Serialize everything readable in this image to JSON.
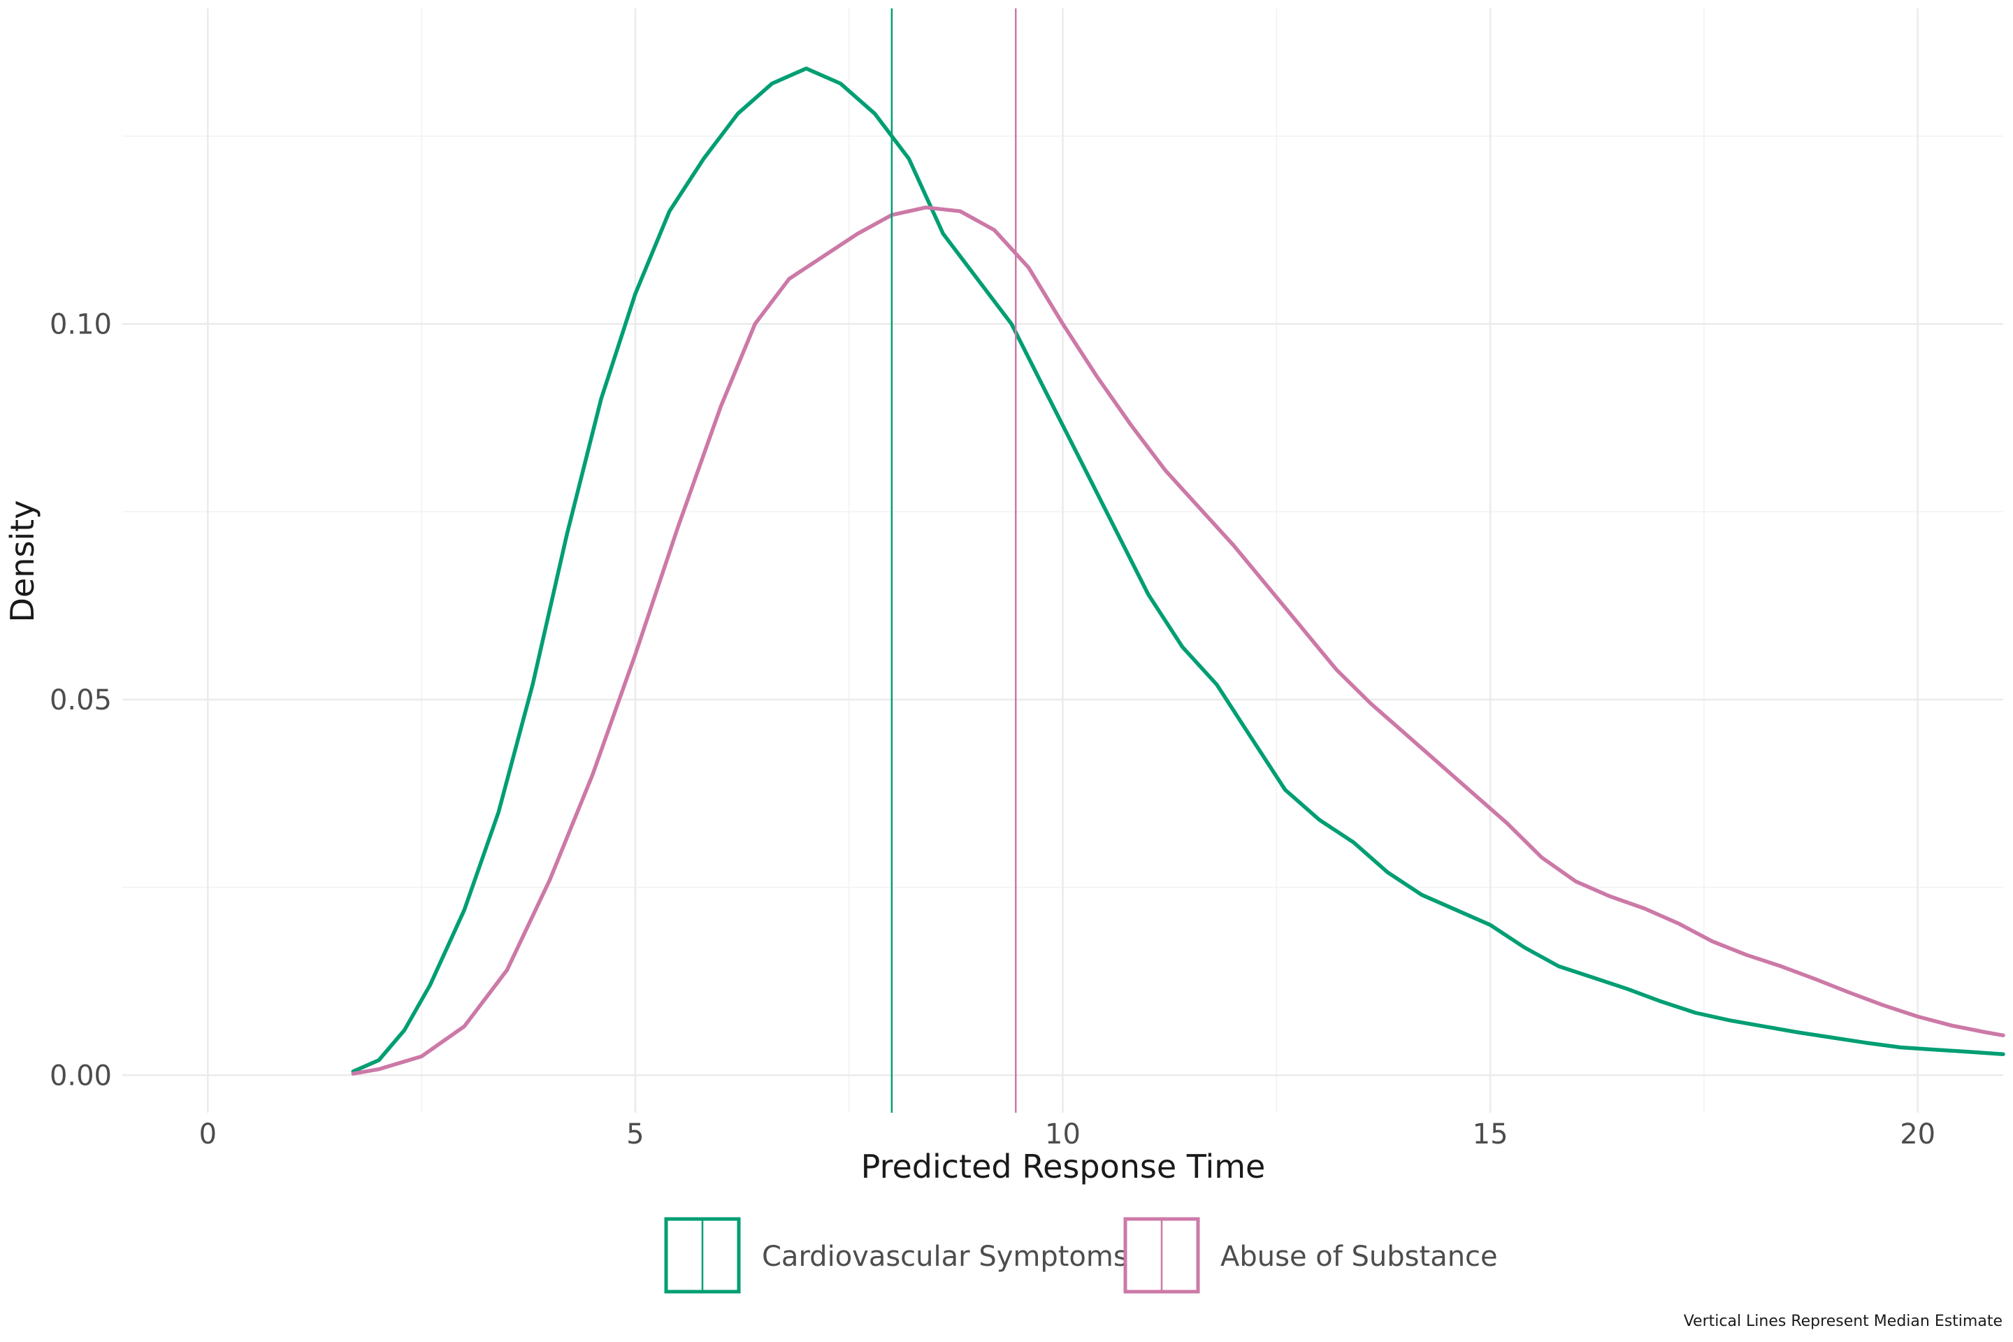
{
  "chart_data": {
    "type": "line",
    "title": "",
    "xlabel": "Predicted Response Time",
    "ylabel": "Density",
    "xlim": [
      -1,
      21
    ],
    "ylim": [
      -0.005,
      0.142
    ],
    "x_ticks": [
      0,
      5,
      10,
      15,
      20
    ],
    "x_tick_labels": [
      "0",
      "5",
      "10",
      "15",
      "20"
    ],
    "y_ticks": [
      0.0,
      0.05,
      0.1
    ],
    "y_tick_labels": [
      "0.00",
      "0.05",
      "0.10"
    ],
    "x_minor_ticks": [
      2.5,
      7.5,
      12.5,
      17.5
    ],
    "y_minor_ticks": [
      0.025,
      0.075,
      0.125
    ],
    "grid": true,
    "legend_position": "bottom",
    "caption": "Vertical Lines Represent Median Estimate",
    "series": [
      {
        "name": "Cardiovascular Symptoms",
        "color": "#009E73",
        "median": 8.0,
        "points": [
          [
            1.7,
            0.0005
          ],
          [
            2.0,
            0.002
          ],
          [
            2.3,
            0.006
          ],
          [
            2.6,
            0.012
          ],
          [
            3.0,
            0.022
          ],
          [
            3.4,
            0.035
          ],
          [
            3.8,
            0.052
          ],
          [
            4.2,
            0.072
          ],
          [
            4.6,
            0.09
          ],
          [
            5.0,
            0.104
          ],
          [
            5.4,
            0.115
          ],
          [
            5.8,
            0.122
          ],
          [
            6.2,
            0.128
          ],
          [
            6.6,
            0.132
          ],
          [
            7.0,
            0.134
          ],
          [
            7.4,
            0.132
          ],
          [
            7.8,
            0.128
          ],
          [
            8.2,
            0.122
          ],
          [
            8.6,
            0.112
          ],
          [
            9.0,
            0.106
          ],
          [
            9.4,
            0.1
          ],
          [
            9.8,
            0.091
          ],
          [
            10.2,
            0.082
          ],
          [
            10.6,
            0.073
          ],
          [
            11.0,
            0.064
          ],
          [
            11.4,
            0.057
          ],
          [
            11.8,
            0.052
          ],
          [
            12.2,
            0.045
          ],
          [
            12.6,
            0.038
          ],
          [
            13.0,
            0.034
          ],
          [
            13.4,
            0.031
          ],
          [
            13.8,
            0.027
          ],
          [
            14.2,
            0.024
          ],
          [
            14.6,
            0.022
          ],
          [
            15.0,
            0.02
          ],
          [
            15.4,
            0.017
          ],
          [
            15.8,
            0.0145
          ],
          [
            16.2,
            0.013
          ],
          [
            16.6,
            0.0115
          ],
          [
            17.0,
            0.0098
          ],
          [
            17.4,
            0.0083
          ],
          [
            17.8,
            0.0073
          ],
          [
            18.2,
            0.0065
          ],
          [
            18.6,
            0.0057
          ],
          [
            19.0,
            0.005
          ],
          [
            19.4,
            0.0043
          ],
          [
            19.8,
            0.0037
          ],
          [
            20.2,
            0.0034
          ],
          [
            20.6,
            0.0031
          ],
          [
            21.0,
            0.0028
          ]
        ]
      },
      {
        "name": "Abuse of Substance",
        "color": "#CC79A7",
        "median": 9.45,
        "points": [
          [
            1.7,
            0.0002
          ],
          [
            2.0,
            0.0008
          ],
          [
            2.5,
            0.0025
          ],
          [
            3.0,
            0.0065
          ],
          [
            3.5,
            0.014
          ],
          [
            4.0,
            0.026
          ],
          [
            4.5,
            0.04
          ],
          [
            5.0,
            0.056
          ],
          [
            5.5,
            0.073
          ],
          [
            6.0,
            0.089
          ],
          [
            6.4,
            0.1
          ],
          [
            6.8,
            0.106
          ],
          [
            7.2,
            0.109
          ],
          [
            7.6,
            0.112
          ],
          [
            8.0,
            0.1145
          ],
          [
            8.4,
            0.1155
          ],
          [
            8.8,
            0.115
          ],
          [
            9.2,
            0.1125
          ],
          [
            9.6,
            0.1075
          ],
          [
            10.0,
            0.1
          ],
          [
            10.4,
            0.093
          ],
          [
            10.8,
            0.0865
          ],
          [
            11.2,
            0.0805
          ],
          [
            11.6,
            0.0755
          ],
          [
            12.0,
            0.0705
          ],
          [
            12.4,
            0.065
          ],
          [
            12.8,
            0.0595
          ],
          [
            13.2,
            0.054
          ],
          [
            13.6,
            0.0495
          ],
          [
            14.0,
            0.0455
          ],
          [
            14.4,
            0.0415
          ],
          [
            14.8,
            0.0375
          ],
          [
            15.2,
            0.0335
          ],
          [
            15.6,
            0.029
          ],
          [
            16.0,
            0.0258
          ],
          [
            16.4,
            0.0238
          ],
          [
            16.8,
            0.0222
          ],
          [
            17.2,
            0.0202
          ],
          [
            17.6,
            0.0178
          ],
          [
            18.0,
            0.016
          ],
          [
            18.4,
            0.0145
          ],
          [
            18.8,
            0.0128
          ],
          [
            19.2,
            0.011
          ],
          [
            19.6,
            0.0093
          ],
          [
            20.0,
            0.0078
          ],
          [
            20.4,
            0.0066
          ],
          [
            20.8,
            0.0057
          ],
          [
            21.0,
            0.0053
          ]
        ]
      }
    ]
  }
}
